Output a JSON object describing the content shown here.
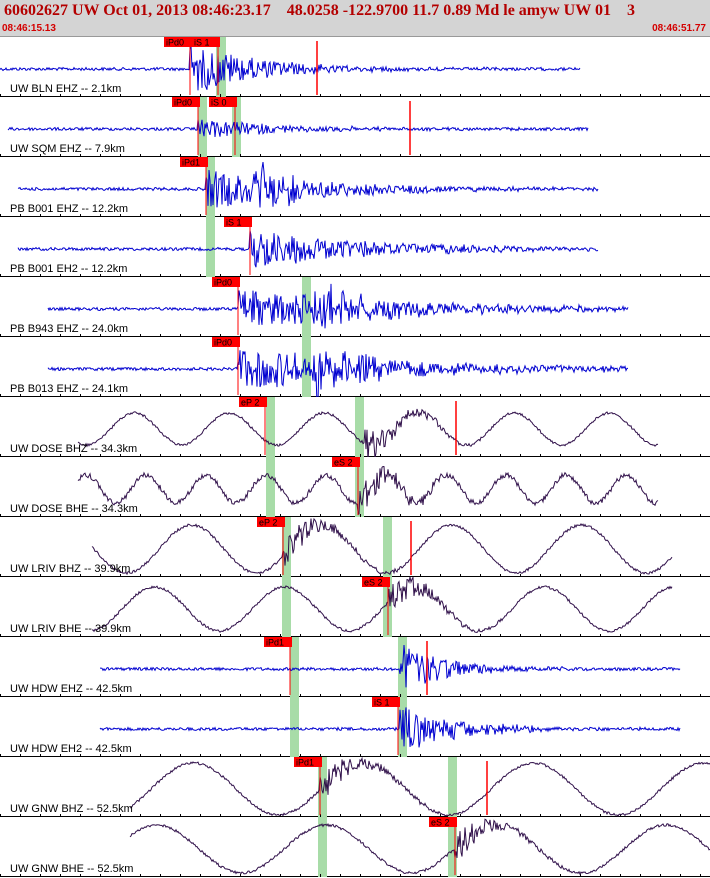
{
  "header": {
    "title": "60602627 UW Oct 01, 2013 08:46:23.17    48.0258 -122.9700 11.7 0.89 Md le amyw UW 01    3",
    "start_time": "08:46:15.13",
    "end_time": "08:46:51.77"
  },
  "colors": {
    "trace_blue": "#0000d0",
    "trace_dark": "#30104a",
    "pick_red": "#ff0000",
    "window_green": "#a8dca8",
    "header_bg": "#d4d4d4",
    "header_text": "#b40000"
  },
  "traces": [
    {
      "label": "UW BLN EHZ -- 2.1km",
      "picks": [
        "iPd0",
        "iS 1"
      ],
      "color": "blue"
    },
    {
      "label": "UW SQM EHZ -- 7.9km",
      "picks": [
        "iPd0",
        "iS 0"
      ],
      "color": "blue"
    },
    {
      "label": "PB B001 EHZ -- 12.2km",
      "picks": [
        "iPd1"
      ],
      "color": "blue"
    },
    {
      "label": "PB B001 EH2 -- 12.2km",
      "picks": [
        "iS 1"
      ],
      "color": "blue"
    },
    {
      "label": "PB B943 EHZ -- 24.0km",
      "picks": [
        "iPd0"
      ],
      "color": "blue"
    },
    {
      "label": "PB B013 EHZ -- 24.1km",
      "picks": [
        "iPd0"
      ],
      "color": "blue"
    },
    {
      "label": "UW DOSE BHZ -- 34.3km",
      "picks": [
        "eP 2"
      ],
      "color": "dark"
    },
    {
      "label": "UW DOSE BHE -- 34.3km",
      "picks": [
        "eS 2"
      ],
      "color": "dark"
    },
    {
      "label": "UW LRIV BHZ -- 39.9km",
      "picks": [
        "eP 2"
      ],
      "color": "dark"
    },
    {
      "label": "UW LRIV BHE -- 39.9km",
      "picks": [
        "eS 2"
      ],
      "color": "dark"
    },
    {
      "label": "UW HDW EHZ -- 42.5km",
      "picks": [
        "iPd1"
      ],
      "color": "blue"
    },
    {
      "label": "UW HDW EH2 -- 42.5km",
      "picks": [
        "iS 1"
      ],
      "color": "blue"
    },
    {
      "label": "UW GNW BHZ -- 52.5km",
      "picks": [
        "iPd1"
      ],
      "color": "dark"
    },
    {
      "label": "UW GNW BHE -- 52.5km",
      "picks": [
        "eS 2"
      ],
      "color": "dark"
    }
  ]
}
